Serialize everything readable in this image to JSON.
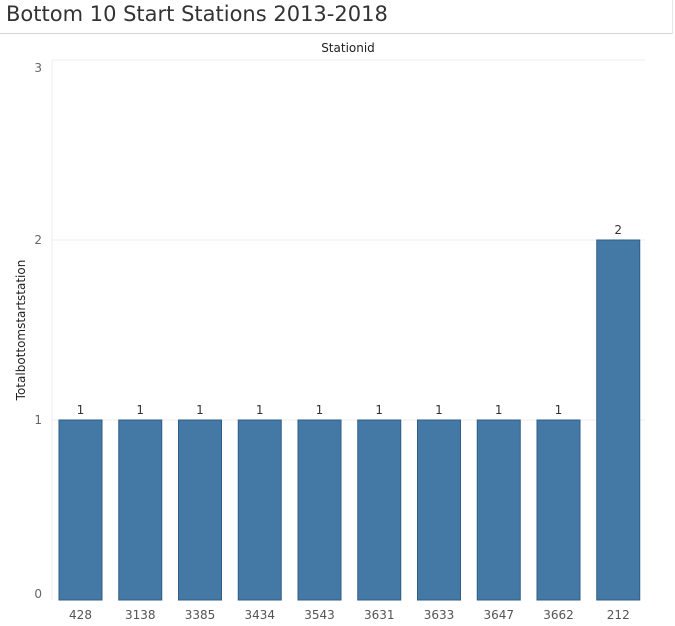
{
  "chart_data": {
    "type": "bar",
    "title": "Bottom 10 Start Stations 2013-2018",
    "xlabel": "Stationid",
    "ylabel": "Totalbottomstartstation",
    "categories": [
      "428",
      "3138",
      "3385",
      "3434",
      "3543",
      "3631",
      "3633",
      "3647",
      "3662",
      "212"
    ],
    "values": [
      1,
      1,
      1,
      1,
      1,
      1,
      1,
      1,
      1,
      2
    ],
    "ylim": [
      0,
      3
    ],
    "yticks": [
      0,
      1,
      2,
      3
    ],
    "grid": true,
    "data_labels": true,
    "colors": {
      "bar": "#4579a5",
      "bar_border": "#2f5d85"
    }
  }
}
